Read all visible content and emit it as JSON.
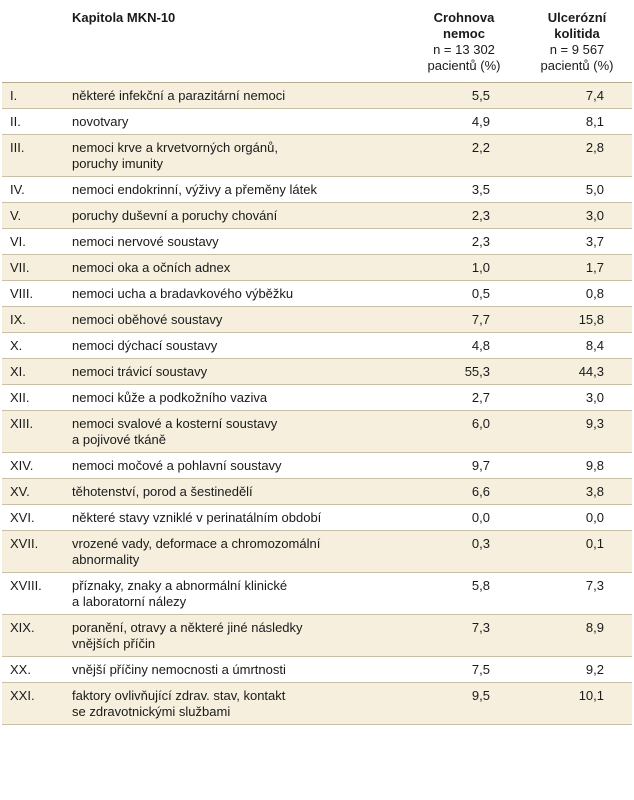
{
  "header": {
    "chapter": "Kapitola MKN-10",
    "cd": [
      "Crohnova",
      "nemoc",
      "n = 13 302",
      "pacientů (%)"
    ],
    "uc": [
      "Ulcerózní",
      "kolitida",
      "n = 9 567",
      "pacientů (%)"
    ]
  },
  "rows": [
    {
      "num": "I.",
      "name": [
        "některé infekční a parazitární nemoci"
      ],
      "cd": "5,5",
      "uc": "7,4"
    },
    {
      "num": "II.",
      "name": [
        "novotvary"
      ],
      "cd": "4,9",
      "uc": "8,1"
    },
    {
      "num": "III.",
      "name": [
        "nemoci krve a krvetvorných orgánů,",
        "poruchy imunity"
      ],
      "cd": "2,2",
      "uc": "2,8"
    },
    {
      "num": "IV.",
      "name": [
        "nemoci endokrinní, výživy a přeměny látek"
      ],
      "cd": "3,5",
      "uc": "5,0"
    },
    {
      "num": "V.",
      "name": [
        "poruchy duševní a poruchy chování"
      ],
      "cd": "2,3",
      "uc": "3,0"
    },
    {
      "num": "VI.",
      "name": [
        "nemoci nervové soustavy"
      ],
      "cd": "2,3",
      "uc": "3,7"
    },
    {
      "num": "VII.",
      "name": [
        "nemoci oka a očních adnex"
      ],
      "cd": "1,0",
      "uc": "1,7"
    },
    {
      "num": "VIII.",
      "name": [
        "nemoci ucha a bradavkového výběžku"
      ],
      "cd": "0,5",
      "uc": "0,8"
    },
    {
      "num": "IX.",
      "name": [
        "nemoci oběhové soustavy"
      ],
      "cd": "7,7",
      "uc": "15,8"
    },
    {
      "num": "X.",
      "name": [
        "nemoci dýchací soustavy"
      ],
      "cd": "4,8",
      "uc": "8,4"
    },
    {
      "num": "XI.",
      "name": [
        "nemoci trávicí soustavy"
      ],
      "cd": "55,3",
      "uc": "44,3"
    },
    {
      "num": "XII.",
      "name": [
        "nemoci kůže a podkožního vaziva"
      ],
      "cd": "2,7",
      "uc": "3,0"
    },
    {
      "num": "XIII.",
      "name": [
        "nemoci svalové a kosterní soustavy",
        "a pojivové tkáně"
      ],
      "cd": "6,0",
      "uc": "9,3"
    },
    {
      "num": "XIV.",
      "name": [
        "nemoci močové a pohlavní soustavy"
      ],
      "cd": "9,7",
      "uc": "9,8"
    },
    {
      "num": "XV.",
      "name": [
        "těhotenství, porod a šestinedělí"
      ],
      "cd": "6,6",
      "uc": "3,8"
    },
    {
      "num": "XVI.",
      "name": [
        "některé stavy vzniklé v perinatálním období"
      ],
      "cd": "0,0",
      "uc": "0,0"
    },
    {
      "num": "XVII.",
      "name": [
        "vrozené vady, deformace a chromozomální",
        "abnormality"
      ],
      "cd": "0,3",
      "uc": "0,1"
    },
    {
      "num": "XVIII.",
      "name": [
        "příznaky, znaky a abnormální klinické",
        "a laboratorní nálezy"
      ],
      "cd": "5,8",
      "uc": "7,3"
    },
    {
      "num": "XIX.",
      "name": [
        "poranění, otravy a některé jiné následky",
        "vnějších příčin"
      ],
      "cd": "7,3",
      "uc": "8,9"
    },
    {
      "num": "XX.",
      "name": [
        "vnější příčiny nemocnosti a úmrtnosti"
      ],
      "cd": "7,5",
      "uc": "9,2"
    },
    {
      "num": "XXI.",
      "name": [
        "faktory ovlivňující zdrav. stav, kontakt",
        "se zdravotnickými službami"
      ],
      "cd": "9,5",
      "uc": "10,1"
    }
  ],
  "colors": {
    "row_shade": "#f6efde",
    "rule": "#c9bfa6"
  }
}
